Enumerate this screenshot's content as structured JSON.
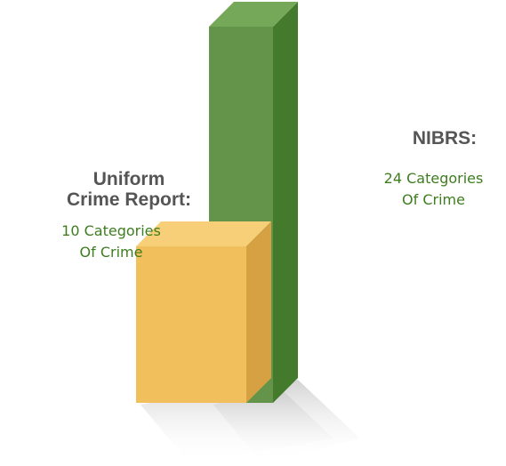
{
  "chart_data": {
    "type": "bar",
    "categories": [
      "Uniform Crime Report",
      "NIBRS"
    ],
    "values": [
      10,
      24
    ],
    "ylim": [
      0,
      24
    ],
    "colors": {
      "ucr": {
        "front": "#f1bf5b",
        "side": "#d5a142",
        "top": "#f6cf78"
      },
      "nibrs": {
        "front": "#63944a",
        "side": "#437a2b",
        "top": "#76a85a"
      },
      "label_green": "#3e7d1f",
      "label_gray": "#555555"
    },
    "annotations": {
      "ucr": {
        "title_lines": [
          "Uniform",
          "Crime Report:"
        ],
        "detail_lines": [
          "10 Categories",
          "Of Crime"
        ]
      },
      "nibrs": {
        "title_lines": [
          "NIBRS:"
        ],
        "detail_lines": [
          "24 Categories",
          "Of Crime"
        ]
      }
    }
  }
}
